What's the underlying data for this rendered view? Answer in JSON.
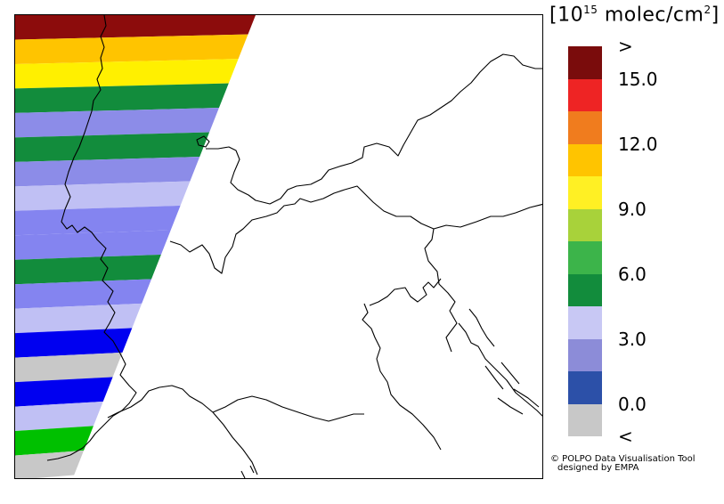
{
  "legend": {
    "unit_prefix": "[10",
    "unit_exponent": "15",
    "unit_suffix": " molec/cm",
    "unit_square": "2",
    "unit_close": "]",
    "colors": [
      "#7a0c0c",
      "#ee2424",
      "#f07c1e",
      "#ffc400",
      "#fff024",
      "#a8d23a",
      "#3cb44a",
      "#128c3c",
      "#c8c8f4",
      "#8c8cd8",
      "#2c50a8",
      "#c8c8c8"
    ],
    "labels": [
      {
        "text": ">",
        "row": 0
      },
      {
        "text": "15.0",
        "row": 1
      },
      {
        "text": "12.0",
        "row": 3
      },
      {
        "text": "9.0",
        "row": 5
      },
      {
        "text": "6.0",
        "row": 7
      },
      {
        "text": "3.0",
        "row": 9
      },
      {
        "text": "0.0",
        "row": 11
      },
      {
        "text": "<",
        "row": 12
      }
    ]
  },
  "swath_bands": [
    "#8c0c0c",
    "#ffc400",
    "#fff000",
    "#128c3c",
    "#8c8ce8",
    "#128c3c",
    "#8c8ce8",
    "#c0c0f4",
    "#8484f0",
    "#8484f0",
    "#128c3c",
    "#8484f0",
    "#c0c0f4",
    "#0000f0",
    "#c8c8c8",
    "#0000f0",
    "#c0c0f4",
    "#00c000",
    "#c8c8c8"
  ],
  "credit": {
    "line1": "© POLPO Data Visualisation Tool",
    "line2": "designed by EMPA"
  }
}
